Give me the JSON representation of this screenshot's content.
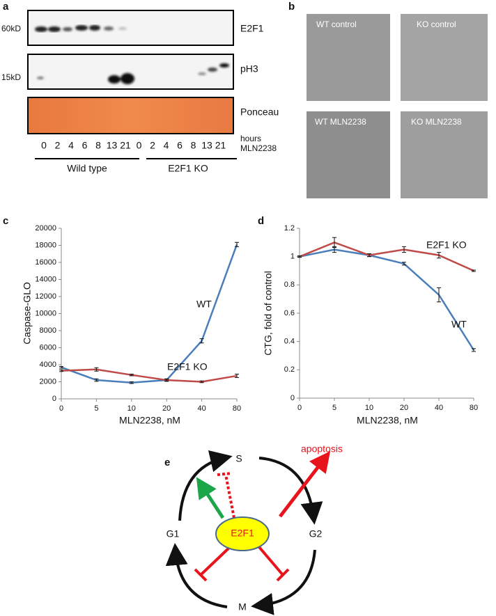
{
  "panel_a": {
    "label": "a",
    "blots": [
      {
        "mw": "60kD",
        "name": "E2F1"
      },
      {
        "mw": "15kD",
        "name": "pH3"
      },
      {
        "name": "Ponceau"
      }
    ],
    "lanes": [
      0,
      2,
      4,
      6,
      8,
      13,
      21,
      0,
      2,
      4,
      6,
      8,
      13,
      21
    ],
    "time_unit": "hours",
    "drug": "MLN2238",
    "groups": [
      "Wild type",
      "E2F1 KO"
    ]
  },
  "panel_b": {
    "label": "b",
    "images": [
      "WT control",
      "KO control",
      "WT MLN2238",
      "KO MLN2238"
    ]
  },
  "chart_data": [
    {
      "type": "line",
      "panel": "c",
      "y_label": "Caspase-GLO",
      "x_label": "MLN2238, nM",
      "categories": [
        0,
        5,
        10,
        20,
        40,
        80
      ],
      "series": [
        {
          "name": "WT",
          "color": "#4a7ebb",
          "values": [
            3700,
            2200,
            1900,
            2200,
            6800,
            18100
          ],
          "errors": [
            100,
            150,
            100,
            150,
            250,
            250
          ]
        },
        {
          "name": "E2F1 KO",
          "color": "#be4b48",
          "values": [
            3300,
            3450,
            2800,
            2200,
            2000,
            2700
          ],
          "errors": [
            100,
            200,
            100,
            100,
            100,
            200
          ]
        }
      ],
      "ylim": [
        0,
        20000
      ],
      "yticks": [
        0,
        2000,
        4000,
        6000,
        8000,
        10000,
        12000,
        14000,
        16000,
        18000,
        20000
      ]
    },
    {
      "type": "line",
      "panel": "d",
      "y_label": "CTG, fold of control",
      "x_label": "MLN2238, nM",
      "categories": [
        0,
        5,
        10,
        20,
        40,
        80
      ],
      "series": [
        {
          "name": "WT",
          "color": "#4a7ebb",
          "values": [
            1,
            1.05,
            1.01,
            0.95,
            0.73,
            0.34
          ],
          "errors": [
            0.005,
            0.02,
            0.01,
            0.01,
            0.05,
            0.01
          ]
        },
        {
          "name": "E2F1 KO",
          "color": "#be4b48",
          "values": [
            1,
            1.1,
            1.01,
            1.05,
            1.01,
            0.9
          ],
          "errors": [
            0.005,
            0.035,
            0.01,
            0.02,
            0.02,
            0.005
          ]
        }
      ],
      "ylim": [
        0,
        1.2
      ],
      "yticks": [
        0,
        0.2,
        0.4,
        0.6,
        0.8,
        1,
        1.2
      ]
    }
  ],
  "panel_e": {
    "label": "e",
    "nodes": {
      "S": "S",
      "G1": "G1",
      "G2": "G2",
      "M": "M"
    },
    "center": "E2F1",
    "outcome": "apoptosis"
  }
}
